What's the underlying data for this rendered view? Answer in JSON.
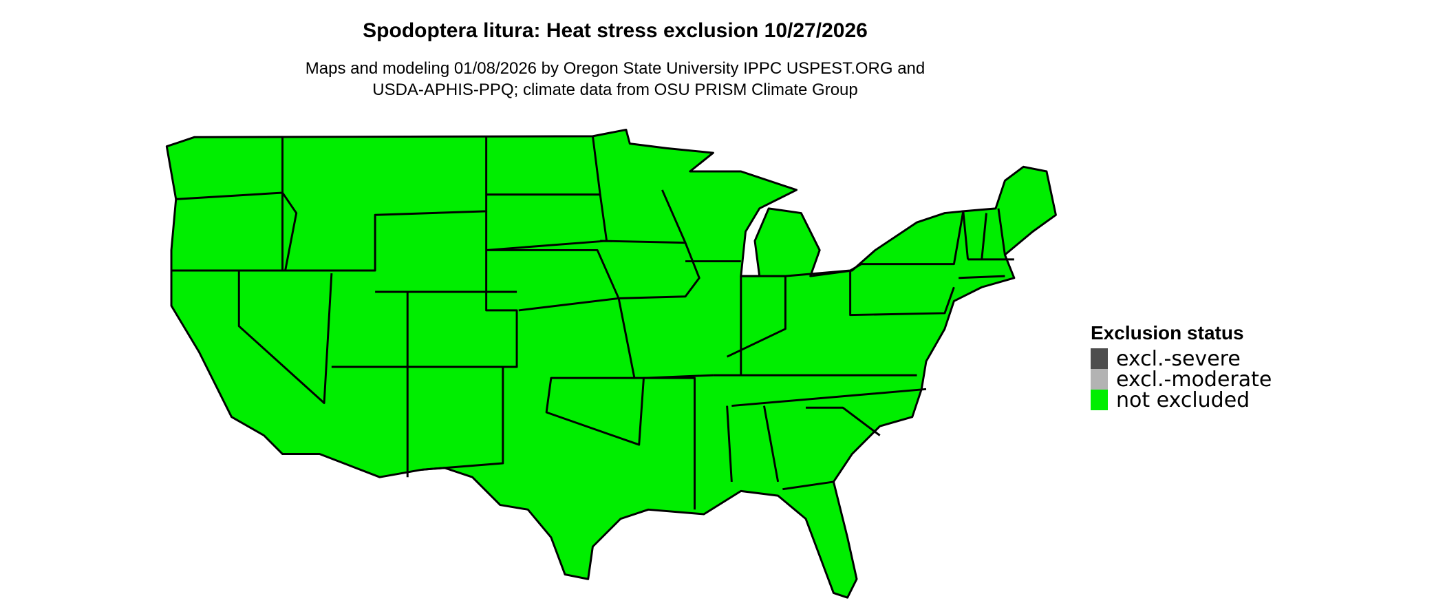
{
  "title": "Spodoptera litura: Heat stress exclusion 10/27/2026",
  "subtitle_line1": "Maps and modeling 01/08/2026 by Oregon State University IPPC USPEST.ORG and",
  "subtitle_line2": "USDA-APHIS-PPQ; climate data from OSU PRISM Climate Group",
  "map": {
    "region": "Contiguous United States",
    "status_shown": "not excluded",
    "fill_color": "#00EE00",
    "border_color": "#000000"
  },
  "legend": {
    "title": "Exclusion status",
    "items": [
      {
        "label": "excl.-severe",
        "color": "#4D4D4D"
      },
      {
        "label": "excl.-moderate",
        "color": "#B3B3B3"
      },
      {
        "label": "not excluded",
        "color": "#00EE00"
      }
    ]
  }
}
